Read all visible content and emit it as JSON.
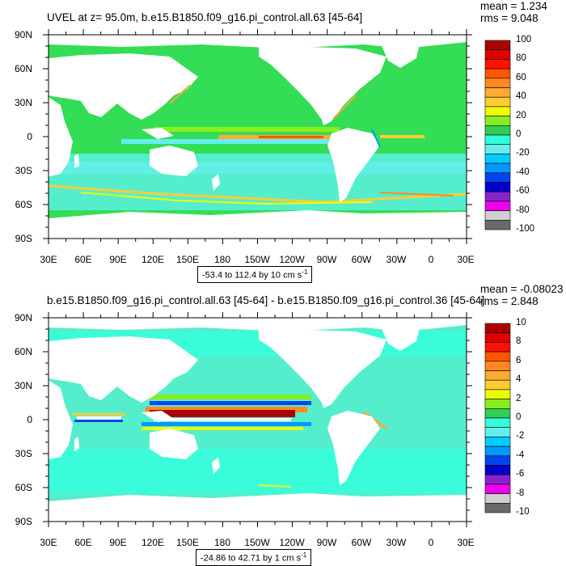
{
  "colors": {
    "ocean_base": "#33dd55",
    "ocean_south": "#55eecc",
    "land": "#ffffff",
    "levels": [
      "#6a6a6a",
      "#cfcfcf",
      "#ee00ee",
      "#8822cc",
      "#0000cc",
      "#0044ee",
      "#0099ff",
      "#00ccff",
      "#66eeee",
      "#33ffdd",
      "#33cc55",
      "#88ee22",
      "#eeff00",
      "#ffcc33",
      "#ffaa33",
      "#ff8822",
      "#ff5500",
      "#ff1100",
      "#dd0000",
      "#aa0000"
    ]
  },
  "panels": [
    {
      "title": "UVEL at z=  95.0m, b.e15.B1850.f09_g16.pi_control.all.63 [45-64]",
      "mean_text": "mean = 1.234",
      "rms_text": "rms = 9.048",
      "range_text": "-53.4 to 112.4 by 10 cm s",
      "range_unit_sup": "-1",
      "colorbar_labels": [
        "100",
        "80",
        "60",
        "40",
        "20",
        "0",
        "-20",
        "-40",
        "-60",
        "-80",
        "-100"
      ]
    },
    {
      "title": "b.e15.B1850.f09_g16.pi_control.all.63 [45-64] - b.e15.B1850.f09_g16.pi_control.36 [45-64]",
      "mean_text": "mean = -0.08023",
      "rms_text": "rms = 2.848",
      "range_text": "-24.86 to 42.71 by 1 cm s",
      "range_unit_sup": "-1",
      "colorbar_labels": [
        "10",
        "8",
        "6",
        "4",
        "2",
        "0",
        "-2",
        "-4",
        "-6",
        "-8",
        "-10"
      ]
    }
  ],
  "axes": {
    "lat_labels": [
      "90N",
      "60N",
      "30N",
      "0",
      "30S",
      "60S",
      "90S"
    ],
    "lon_labels": [
      "30E",
      "60E",
      "90E",
      "120E",
      "150E",
      "180",
      "150W",
      "120W",
      "90W",
      "60W",
      "30W",
      "0",
      "30E"
    ]
  }
}
